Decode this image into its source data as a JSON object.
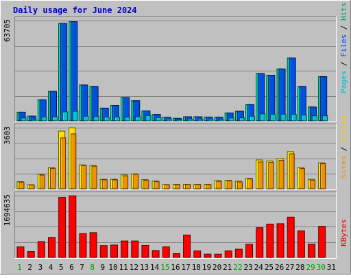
{
  "chart_data": {
    "type": "bar",
    "title": "Daily usage for June 2024",
    "categories": [
      "1",
      "2",
      "3",
      "4",
      "5",
      "6",
      "7",
      "8",
      "9",
      "10",
      "11",
      "12",
      "13",
      "14",
      "15",
      "16",
      "17",
      "18",
      "19",
      "20",
      "21",
      "22",
      "23",
      "24",
      "25",
      "26",
      "27",
      "28",
      "29",
      "30",
      "31"
    ],
    "weekend_days": [
      "1",
      "8",
      "15",
      "22",
      "29",
      "30"
    ],
    "panels": [
      {
        "id": "top",
        "max_label": "63705",
        "ymax": 63705,
        "side_labels": [
          {
            "text": "Pages",
            "color": "#00c0d0"
          },
          {
            "text": " / ",
            "color": "#000000"
          },
          {
            "text": "Files",
            "color": "#0050e0"
          },
          {
            "text": " / ",
            "color": "#000000"
          },
          {
            "text": "Hits",
            "color": "#00a070"
          }
        ],
        "series": [
          {
            "name": "Hits",
            "color": "#00b080",
            "values": [
              5500,
              3000,
              13400,
              18700,
              61900,
              63000,
              22800,
              21900,
              8100,
              9800,
              14800,
              12800,
              6300,
              4100,
              2200,
              1600,
              2600,
              2600,
              2400,
              2300,
              5000,
              6100,
              10300,
              30000,
              29000,
              33000,
              40000,
              21900,
              8800,
              28100,
              0
            ]
          },
          {
            "name": "Files",
            "color": "#0050e0",
            "values": [
              5500,
              3000,
              13400,
              18700,
              61900,
              63000,
              22800,
              21900,
              8100,
              9800,
              14800,
              12800,
              6300,
              4100,
              2200,
              1600,
              2600,
              2600,
              2400,
              2300,
              5000,
              6100,
              10300,
              30000,
              29000,
              33000,
              40000,
              21900,
              8800,
              28100,
              0
            ]
          },
          {
            "name": "Pages",
            "color": "#00c0d0",
            "values": [
              1800,
              900,
              2400,
              2700,
              5700,
              6100,
              2900,
              2800,
              2400,
              2400,
              2400,
              2600,
              3300,
              2100,
              1100,
              700,
              1100,
              1000,
              1000,
              900,
              1800,
              1900,
              2900,
              4400,
              4200,
              4200,
              4100,
              3700,
              3200,
              3200,
              0
            ]
          }
        ]
      },
      {
        "id": "mid",
        "max_label": "3603",
        "ymax": 3603,
        "side_labels": [
          {
            "text": "Sites",
            "color": "#f09000"
          },
          {
            "text": " / ",
            "color": "#000000"
          },
          {
            "text": "Visits",
            "color": "#f0d000"
          }
        ],
        "series": [
          {
            "name": "Visits",
            "color": "#ffe000",
            "values": [
              420,
              240,
              850,
              1250,
              3400,
              3600,
              1410,
              1370,
              560,
              560,
              820,
              880,
              540,
              460,
              250,
              260,
              260,
              260,
              260,
              480,
              500,
              450,
              610,
              1700,
              1640,
              1780,
              2190,
              1260,
              560,
              1530,
              0
            ]
          },
          {
            "name": "Sites",
            "color": "#f09000",
            "values": [
              390,
              220,
              810,
              1200,
              3000,
              3240,
              1360,
              1330,
              530,
              530,
              760,
              850,
              500,
              420,
              240,
              240,
              250,
              250,
              240,
              440,
              460,
              400,
              580,
              1580,
              1560,
              1680,
              2060,
              1190,
              510,
              1480,
              0
            ]
          }
        ]
      },
      {
        "id": "bot",
        "max_label": "1694635",
        "ymax": 1694635,
        "side_labels": [
          {
            "text": "KBytes",
            "color": "#f00000"
          }
        ],
        "series": [
          {
            "name": "KBytes",
            "color": "#ff0000",
            "values": [
              290000,
              160000,
              435000,
              550000,
              1645000,
              1690000,
              650000,
              680000,
              325000,
              340000,
              450000,
              450000,
              330000,
              190000,
              290000,
              105000,
              615000,
              180000,
              90000,
              90000,
              180000,
              225000,
              360000,
              815000,
              915000,
              925000,
              1105000,
              730000,
              365000,
              855000,
              0
            ]
          }
        ]
      }
    ]
  }
}
